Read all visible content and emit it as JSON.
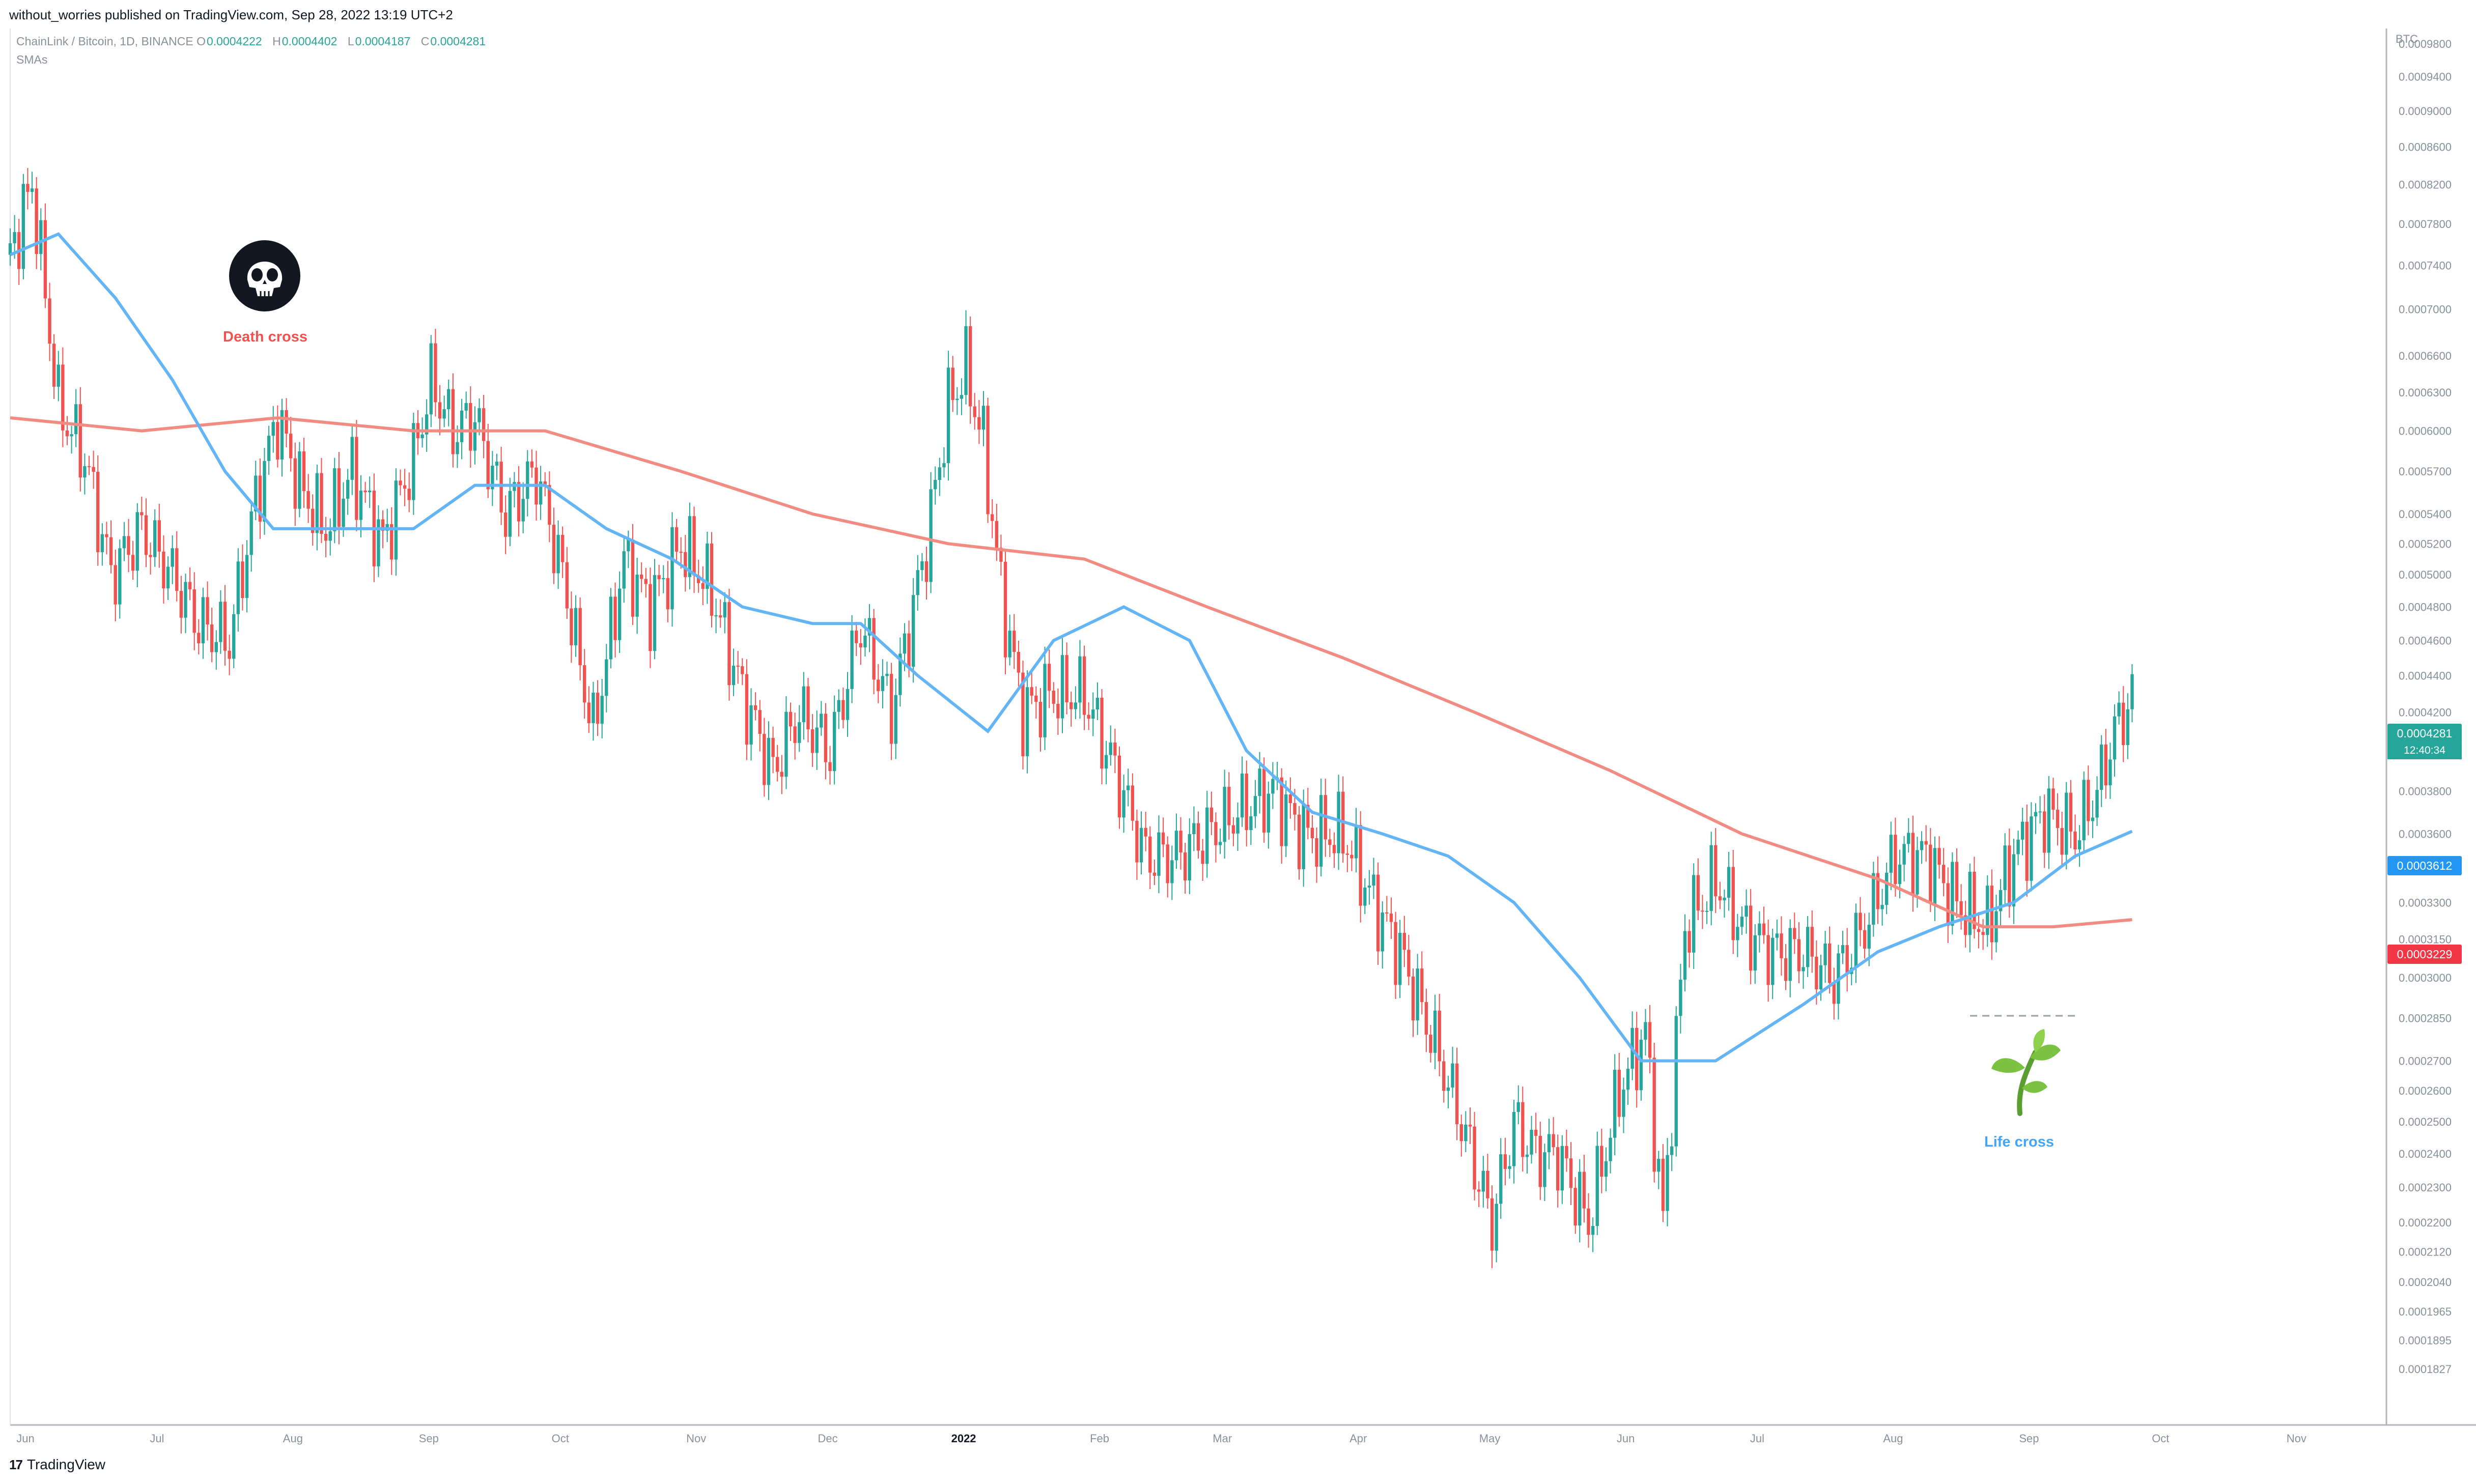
{
  "header": {
    "text": "without_worries published on TradingView.com, Sep 28, 2022 13:19 UTC+2"
  },
  "legend": {
    "symbol": "ChainLink / Bitcoin, 1D, BINANCE",
    "open_key": "O",
    "open": "0.0004222",
    "high_key": "H",
    "high": "0.0004402",
    "low_key": "L",
    "low": "0.0004187",
    "close_key": "C",
    "close": "0.0004281",
    "indicator": "SMAs"
  },
  "axis": {
    "currency": "BTC",
    "y_ticks": [
      "0.0009800",
      "0.0009400",
      "0.0009000",
      "0.0008600",
      "0.0008200",
      "0.0007800",
      "0.0007400",
      "0.0007000",
      "0.0006600",
      "0.0006300",
      "0.0006000",
      "0.0005700",
      "0.0005400",
      "0.0005200",
      "0.0005000",
      "0.0004800",
      "0.0004600",
      "0.0004400",
      "0.0004200",
      "0.0004000",
      "0.0003800",
      "0.0003600",
      "0.0003450",
      "0.0003300",
      "0.0003150",
      "0.0003000",
      "0.0002850",
      "0.0002700",
      "0.0002600",
      "0.0002500",
      "0.0002400",
      "0.0002300",
      "0.0002200",
      "0.0002120",
      "0.0002040",
      "0.0001965",
      "0.0001895",
      "0.0001827"
    ],
    "x_ticks": [
      "Jun",
      "Jul",
      "Aug",
      "Sep",
      "Oct",
      "Nov",
      "Dec",
      "2022",
      "Feb",
      "Mar",
      "Apr",
      "May",
      "Jun",
      "Jul",
      "Aug",
      "Sep",
      "Oct",
      "Nov"
    ]
  },
  "price_tags": {
    "last": "0.0004281",
    "countdown": "12:40:34",
    "sma_fast": "0.0003612",
    "sma_slow": "0.0003229"
  },
  "annotations": {
    "death_cross": "Death cross",
    "life_cross": "Life cross",
    "skull_icon": "skull-icon",
    "sprout_icon": "sprout-icon"
  },
  "footer": {
    "brand": "TradingView",
    "logo": "17"
  },
  "colors": {
    "up": "#26a69a",
    "down": "#ef5350",
    "sma_fast": "#64b5f6",
    "sma_slow": "#f28b82",
    "tag_last": "#26a69a",
    "tag_fast": "#2196f3",
    "tag_slow": "#f23645"
  },
  "chart_data": {
    "type": "line",
    "title": "ChainLink / Bitcoin, 1D, BINANCE",
    "xlabel": "",
    "ylabel": "",
    "y_scale": "log",
    "ylim": [
      0.0001827,
      0.00098
    ],
    "x_range": [
      "2021-06-01",
      "2022-11-25"
    ],
    "grid": false,
    "price": {
      "x": [
        "2021-06-01",
        "2021-06-06",
        "2021-06-12",
        "2021-06-18",
        "2021-06-24",
        "2021-07-01",
        "2021-07-08",
        "2021-07-14",
        "2021-07-21",
        "2021-07-27",
        "2021-08-01",
        "2021-08-06",
        "2021-08-12",
        "2021-08-18",
        "2021-08-25",
        "2021-09-01",
        "2021-09-05",
        "2021-09-10",
        "2021-09-15",
        "2021-09-22",
        "2021-09-29",
        "2021-10-05",
        "2021-10-12",
        "2021-10-19",
        "2021-10-25",
        "2021-11-01",
        "2021-11-08",
        "2021-11-15",
        "2021-11-22",
        "2021-11-28",
        "2021-12-05",
        "2021-12-12",
        "2021-12-19",
        "2021-12-27",
        "2022-01-01",
        "2022-01-05",
        "2022-01-09",
        "2022-01-13",
        "2022-01-18",
        "2022-01-24",
        "2022-02-01",
        "2022-02-08",
        "2022-02-15",
        "2022-02-22",
        "2022-03-01",
        "2022-03-08",
        "2022-03-16",
        "2022-03-23",
        "2022-04-01",
        "2022-04-08",
        "2022-04-14",
        "2022-04-21",
        "2022-04-28",
        "2022-05-05",
        "2022-05-10",
        "2022-05-15",
        "2022-05-20",
        "2022-05-27",
        "2022-06-03",
        "2022-06-09",
        "2022-06-13",
        "2022-06-18",
        "2022-06-25",
        "2022-07-01",
        "2022-07-08",
        "2022-07-15",
        "2022-07-22",
        "2022-07-29",
        "2022-08-05",
        "2022-08-12",
        "2022-08-19",
        "2022-08-26",
        "2022-09-01",
        "2022-09-08",
        "2022-09-15",
        "2022-09-20",
        "2022-09-24",
        "2022-09-28"
      ],
      "values": [
        0.00075,
        0.00082,
        0.00062,
        0.00058,
        0.0005,
        0.00053,
        0.0005,
        0.00047,
        0.00046,
        0.00055,
        0.00061,
        0.00056,
        0.00053,
        0.00057,
        0.00052,
        0.00058,
        0.00064,
        0.0006,
        0.00061,
        0.00054,
        0.00057,
        0.0005,
        0.00041,
        0.00051,
        0.00048,
        0.00052,
        0.00049,
        0.00043,
        0.00039,
        0.00042,
        0.0004,
        0.00047,
        0.00042,
        0.00052,
        0.00062,
        0.00065,
        0.00059,
        0.00049,
        0.00042,
        0.00043,
        0.00043,
        0.00039,
        0.00035,
        0.00035,
        0.00036,
        0.00037,
        0.00038,
        0.00036,
        0.00036,
        0.00033,
        0.00031,
        0.00028,
        0.00025,
        0.00022,
        0.00025,
        0.00024,
        0.00024,
        0.00022,
        0.00026,
        0.00028,
        0.00022,
        0.00032,
        0.00034,
        0.00032,
        0.00031,
        0.00031,
        0.0003,
        0.00032,
        0.00035,
        0.00035,
        0.00033,
        0.00032,
        0.00035,
        0.00037,
        0.00036,
        0.00038,
        0.00041,
        0.0004281
      ]
    },
    "series": [
      {
        "name": "SMA fast",
        "x": [
          "2021-06-01",
          "2021-06-12",
          "2021-06-25",
          "2021-07-08",
          "2021-07-20",
          "2021-07-31",
          "2021-08-15",
          "2021-09-01",
          "2021-09-15",
          "2021-10-01",
          "2021-10-15",
          "2021-10-30",
          "2021-11-15",
          "2021-12-01",
          "2021-12-12",
          "2021-12-25",
          "2022-01-10",
          "2022-01-25",
          "2022-02-10",
          "2022-02-25",
          "2022-03-10",
          "2022-03-25",
          "2022-04-10",
          "2022-04-25",
          "2022-05-10",
          "2022-05-25",
          "2022-06-08",
          "2022-06-25",
          "2022-07-15",
          "2022-08-01",
          "2022-08-15",
          "2022-09-01",
          "2022-09-15",
          "2022-09-28"
        ],
        "values": [
          0.00075,
          0.00077,
          0.00071,
          0.00064,
          0.00057,
          0.00053,
          0.00053,
          0.00053,
          0.00056,
          0.00056,
          0.00053,
          0.00051,
          0.00048,
          0.00047,
          0.00047,
          0.00044,
          0.00041,
          0.00046,
          0.00048,
          0.00046,
          0.0004,
          0.00037,
          0.00036,
          0.00035,
          0.00033,
          0.0003,
          0.00027,
          0.00027,
          0.00029,
          0.00031,
          0.00032,
          0.00033,
          0.00035,
          0.0003612
        ]
      },
      {
        "name": "SMA slow",
        "x": [
          "2021-06-01",
          "2021-07-01",
          "2021-08-01",
          "2021-09-01",
          "2021-10-01",
          "2021-11-01",
          "2021-12-01",
          "2022-01-01",
          "2022-02-01",
          "2022-03-01",
          "2022-04-01",
          "2022-05-01",
          "2022-06-01",
          "2022-07-01",
          "2022-08-01",
          "2022-08-25",
          "2022-09-10",
          "2022-09-28"
        ],
        "values": [
          0.00061,
          0.0006,
          0.00061,
          0.0006,
          0.0006,
          0.00057,
          0.00054,
          0.00052,
          0.00051,
          0.00048,
          0.00045,
          0.00042,
          0.00039,
          0.00036,
          0.00034,
          0.00032,
          0.00032,
          0.0003229
        ]
      }
    ]
  }
}
